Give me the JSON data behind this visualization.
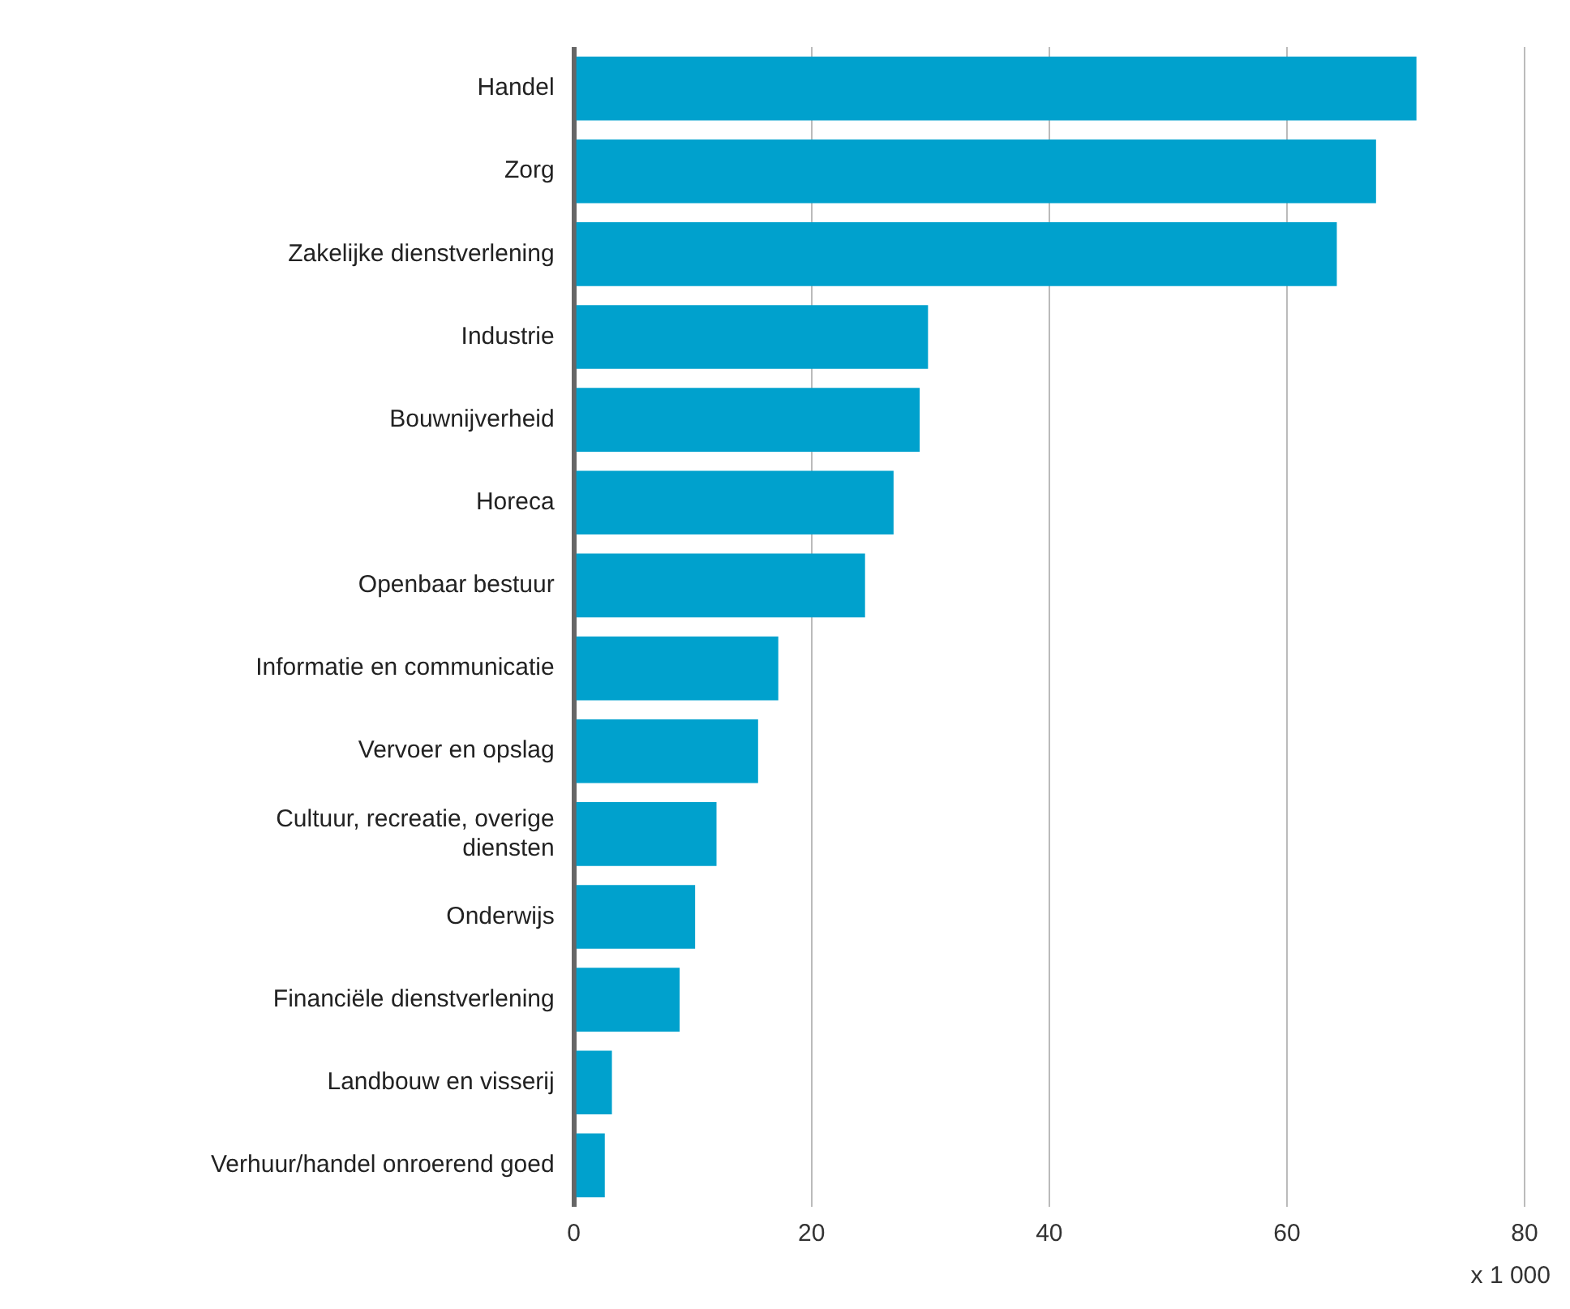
{
  "chart_data": {
    "type": "bar",
    "orientation": "horizontal",
    "categories": [
      "Handel",
      "Zorg",
      "Zakelijke dienstverlening",
      "Industrie",
      "Bouwnijverheid",
      "Horeca",
      "Openbaar bestuur",
      "Informatie en communicatie",
      "Vervoer en opslag",
      "Cultuur, recreatie, overige diensten",
      "Onderwijs",
      "Financiële dienstverlening",
      "Landbouw en visserij",
      "Verhuur/handel onroerend goed"
    ],
    "values": [
      70.9,
      67.5,
      64.2,
      29.8,
      29.1,
      26.9,
      24.5,
      17.2,
      15.5,
      12.0,
      10.2,
      8.9,
      3.2,
      2.6
    ],
    "color": "#00a1cd",
    "xlim": [
      0,
      80
    ],
    "xticks": [
      0,
      20,
      40,
      60,
      80
    ],
    "grid": "x",
    "annotations": [
      "x 1 000"
    ]
  }
}
